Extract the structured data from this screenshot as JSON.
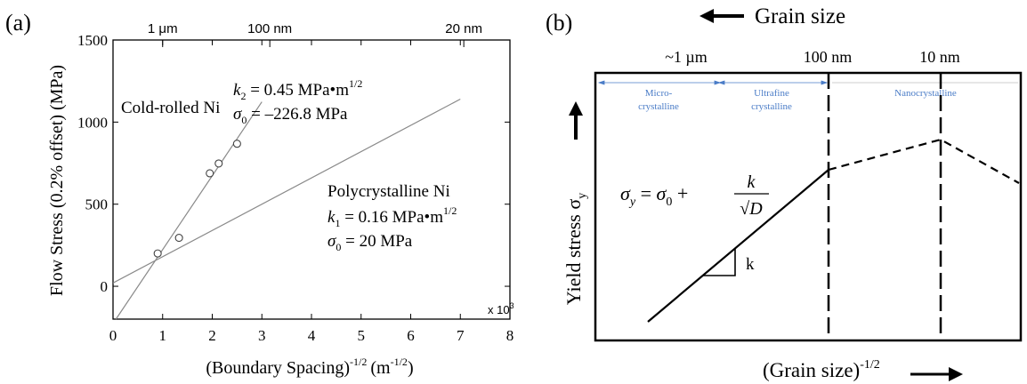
{
  "chart_data": [
    {
      "type": "scatter",
      "panel_label": "(a)",
      "xlabel": "(Boundary Spacing)",
      "xlabel_exp": "-1/2",
      "xlabel_unit": "(m",
      "xlabel_unit_exp": "-1/2",
      "xlabel_unit_close": ")",
      "x_multiplier": "x 10",
      "x_multiplier_exp": "3",
      "ylabel": "Flow Stress (0.2% offset) (MPa)",
      "xlim": [
        0,
        8
      ],
      "ylim": [
        -200,
        1500
      ],
      "x_ticks": [
        0,
        1,
        2,
        3,
        4,
        5,
        6,
        7,
        8
      ],
      "y_ticks": [
        0,
        500,
        1000,
        1500
      ],
      "top_ticks": [
        {
          "x": 1.0,
          "label": "1 μm"
        },
        {
          "x": 3.16,
          "label": "100 nm"
        },
        {
          "x": 7.07,
          "label": "20 nm"
        }
      ],
      "points": [
        {
          "x": 0.9,
          "y": 200
        },
        {
          "x": 1.33,
          "y": 295
        },
        {
          "x": 1.95,
          "y": 688
        },
        {
          "x": 2.13,
          "y": 748
        },
        {
          "x": 2.5,
          "y": 868
        }
      ],
      "lines": [
        {
          "name": "Cold-rolled Ni",
          "intercept": -226.8,
          "slope": 450,
          "x_range": [
            0,
            3.0
          ]
        },
        {
          "name": "Polycrystalline Ni",
          "intercept": 20,
          "slope": 160,
          "x_range": [
            0,
            7.0
          ]
        }
      ],
      "annotations": {
        "cold_label": "Cold-rolled Ni",
        "k2_sym": "k",
        "k2_sub": "2",
        "k2_value": " = 0.45 MPa•m",
        "k2_exp": "1/2",
        "s0a_sym": "σ",
        "s0a_sub": "0",
        "s0a_value": " = –226.8 MPa",
        "poly_label": "Polycrystalline Ni",
        "k1_sym": "k",
        "k1_sub": "1",
        "k1_value": " = 0.16 MPa•m",
        "k1_exp": "1/2",
        "s0b_sym": "σ",
        "s0b_sub": "0",
        "s0b_value": " = 20 MPa"
      },
      "grid": false
    },
    {
      "type": "line",
      "panel_label": "(b)",
      "top_axis_label": "Grain size",
      "xlabel": "(Grain size)",
      "xlabel_exp": "-1/2",
      "ylabel": "Yield stress σ",
      "ylabel_sub": "y",
      "top_markers": [
        "~1 µm",
        "100 nm",
        "10 nm"
      ],
      "regions": [
        "Micro-",
        "crystalline",
        "Ultrafine",
        "crystalline",
        "Nanocrystalline"
      ],
      "equation": {
        "lhs": "σ",
        "lhs_sub": "y",
        "eq": " = ",
        "s0": "σ",
        "s0_sub": "0",
        "plus": " + ",
        "num": "k",
        "den": "√D"
      },
      "slope_label": "k"
    }
  ]
}
